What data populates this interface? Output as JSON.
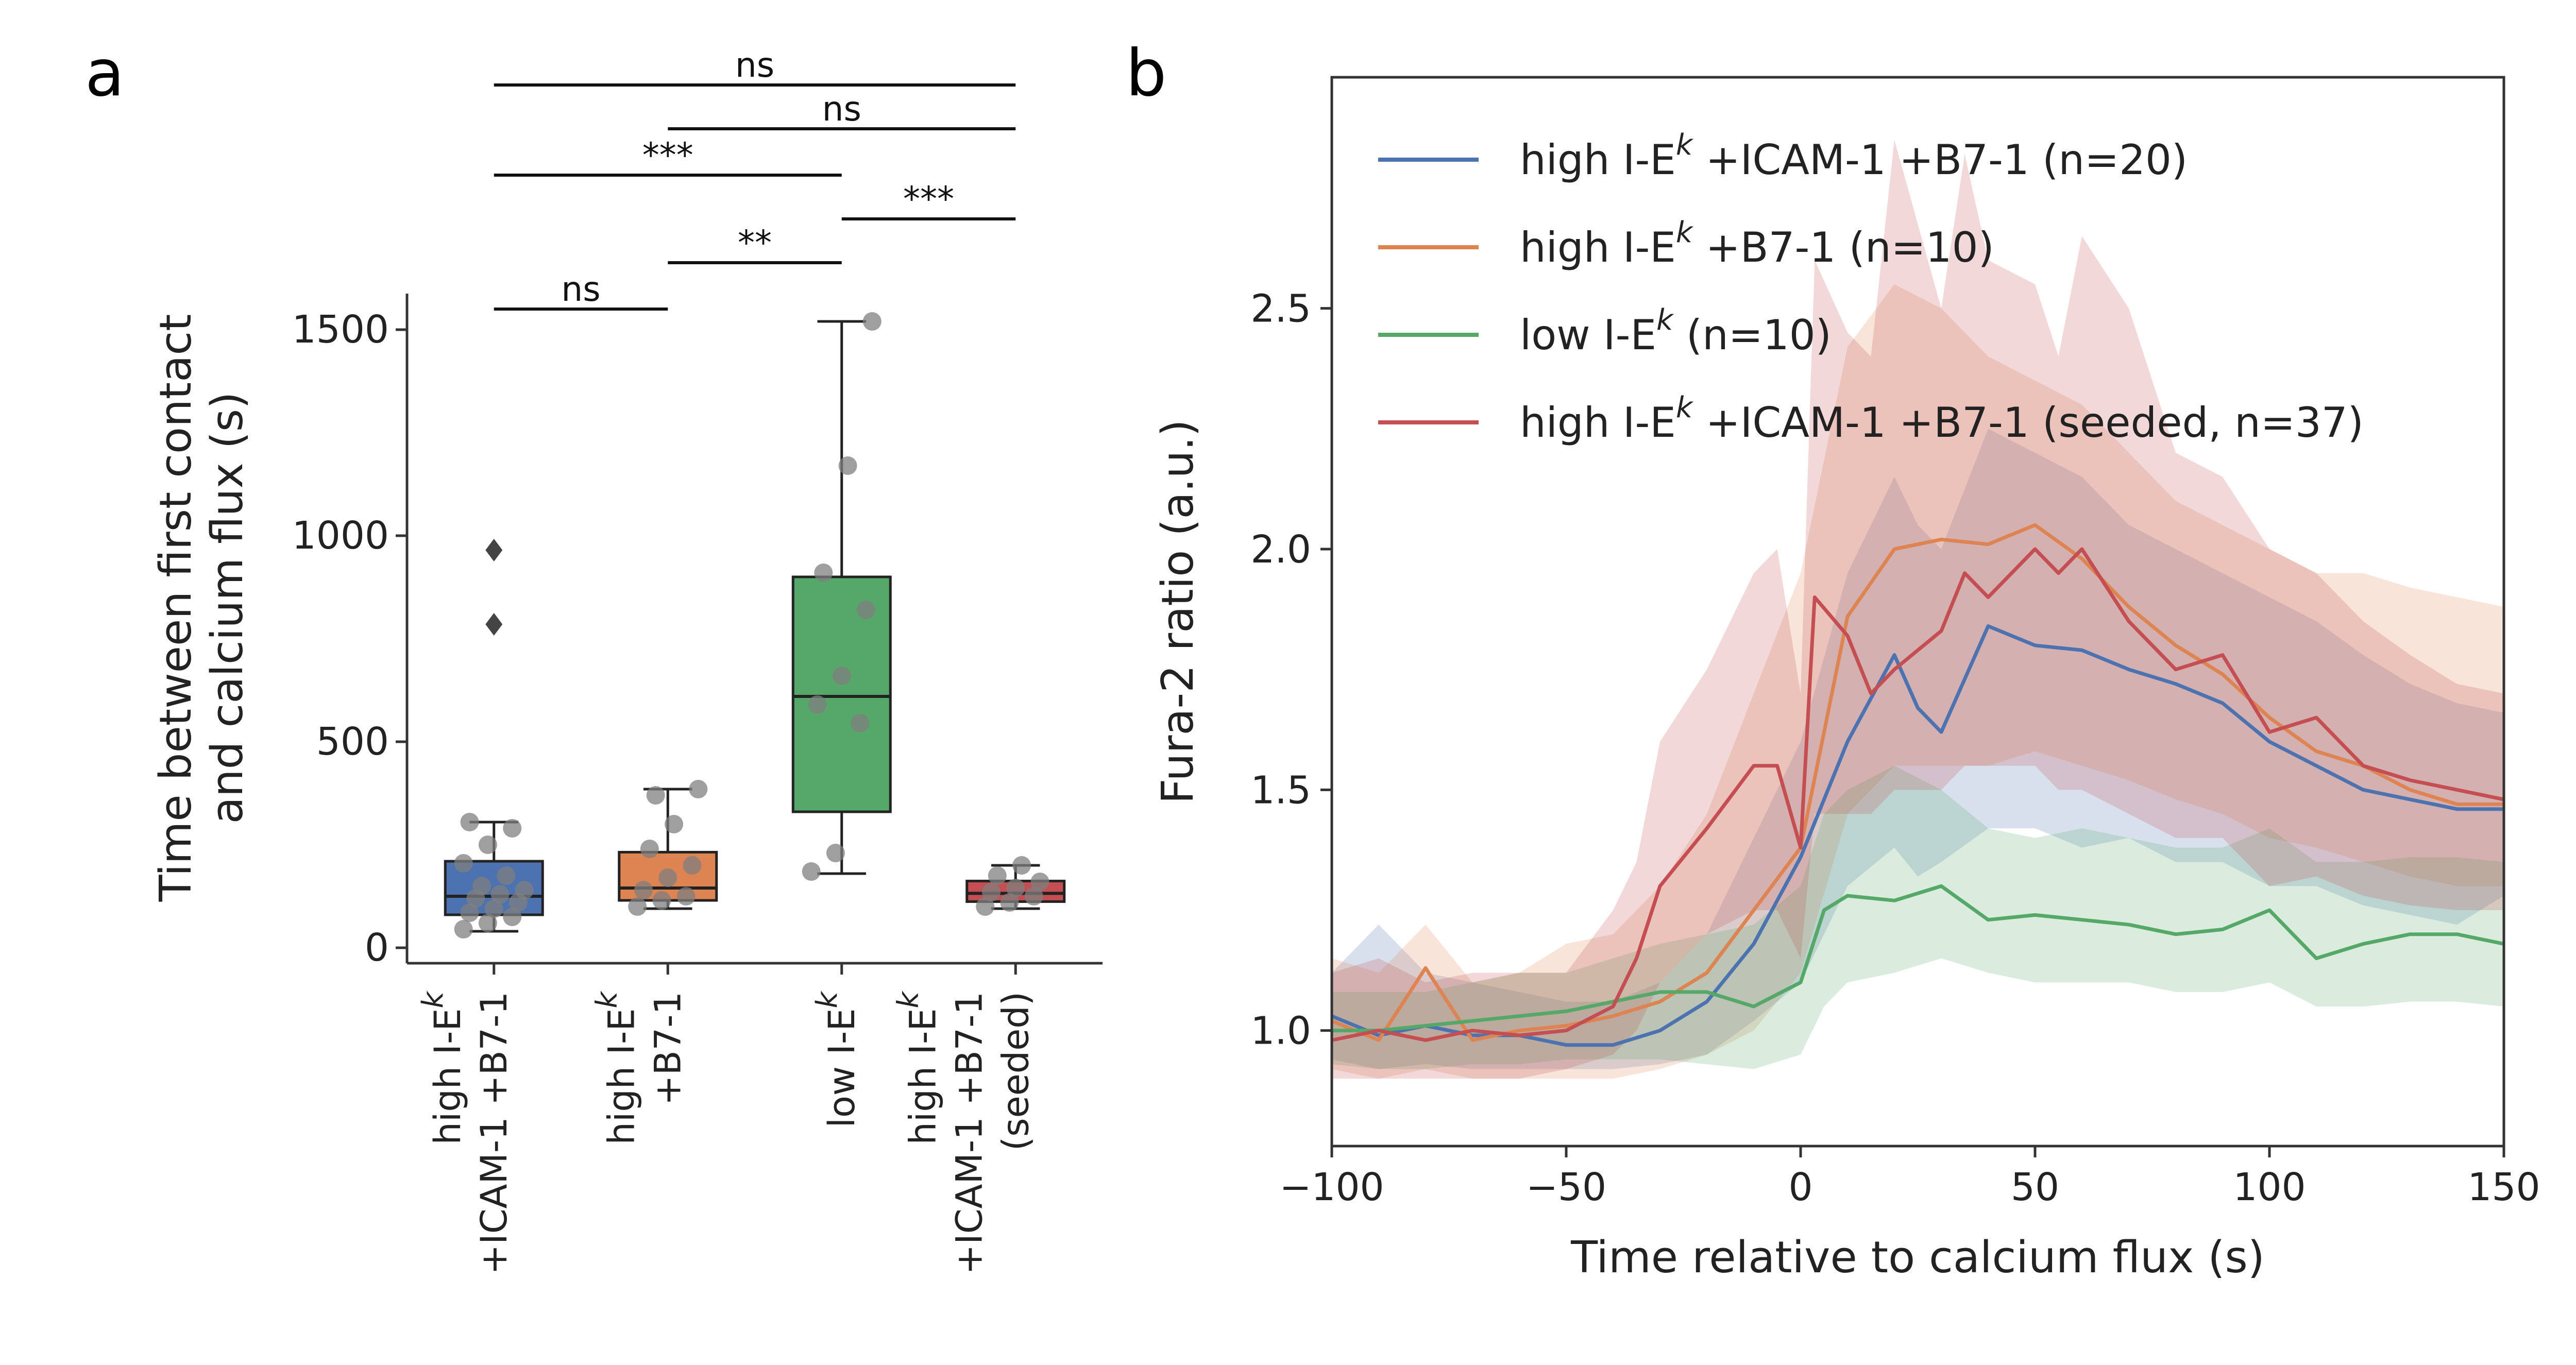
{
  "panel_a_letter": "a",
  "panel_b_letter": "b",
  "chart_data": [
    {
      "type": "box",
      "ylabel_line1": "Time between first contact",
      "ylabel_line2": "and calcium flux (s)",
      "ylim": [
        0,
        1600
      ],
      "yticks": [
        0,
        500,
        1000,
        1500
      ],
      "categories": [
        {
          "lines": [
            [
              "high I-E",
              "k",
              ""
            ],
            [
              "+ICAM-1 +B7-1",
              "",
              ""
            ]
          ],
          "color": "#4c72b0",
          "q1": 80,
          "median": 125,
          "q3": 210,
          "whisker_low": 40,
          "whisker_high": 305,
          "outliers": [
            785,
            965
          ],
          "points": [
            45,
            60,
            75,
            85,
            95,
            110,
            120,
            130,
            140,
            150,
            175,
            205,
            250,
            290,
            305
          ]
        },
        {
          "lines": [
            [
              "high I-E",
              "k",
              ""
            ],
            [
              "+B7-1",
              "",
              ""
            ]
          ],
          "color": "#dd8452",
          "q1": 115,
          "median": 145,
          "q3": 232,
          "whisker_low": 95,
          "whisker_high": 385,
          "outliers": [],
          "points": [
            100,
            115,
            125,
            140,
            170,
            200,
            240,
            300,
            385,
            370
          ]
        },
        {
          "lines": [
            [
              "low I-E",
              "k",
              ""
            ]
          ],
          "color": "#55a868",
          "q1": 330,
          "median": 610,
          "q3": 900,
          "whisker_low": 180,
          "whisker_high": 1520,
          "outliers": [],
          "points": [
            185,
            230,
            545,
            590,
            660,
            820,
            910,
            1170,
            1520
          ]
        },
        {
          "lines": [
            [
              "high I-E",
              "k",
              ""
            ],
            [
              "+ICAM-1 +B7-1",
              "",
              ""
            ],
            [
              "(seeded)",
              "",
              ""
            ]
          ],
          "color": "#c44e52",
          "q1": 112,
          "median": 132,
          "q3": 162,
          "whisker_low": 95,
          "whisker_high": 200,
          "outliers": [],
          "points": [
            100,
            110,
            125,
            135,
            145,
            160,
            175,
            200
          ]
        }
      ],
      "significance": [
        {
          "from": 0,
          "to": 3,
          "label": "ns"
        },
        {
          "from": 1,
          "to": 3,
          "label": "ns"
        },
        {
          "from": 0,
          "to": 2,
          "label": "***"
        },
        {
          "from": 2,
          "to": 3,
          "label": "***"
        },
        {
          "from": 1,
          "to": 2,
          "label": "**"
        },
        {
          "from": 0,
          "to": 1,
          "label": "ns"
        }
      ]
    },
    {
      "type": "line",
      "xlabel": "Time relative to calcium flux (s)",
      "ylabel": "Fura-2 ratio (a.u.)",
      "xlim": [
        -100,
        150
      ],
      "ylim": [
        0.76,
        2.98
      ],
      "xticks": [
        -100,
        -50,
        0,
        50,
        100,
        150
      ],
      "xtick_labels": [
        "−100",
        "−50",
        "0",
        "50",
        "100",
        "150"
      ],
      "yticks": [
        1.0,
        1.5,
        2.0,
        2.5
      ],
      "ytick_labels": [
        "1.0",
        "1.5",
        "2.0",
        "2.5"
      ],
      "legend_position": "top-left",
      "series": [
        {
          "legend": [
            "high I-E",
            "k",
            " +ICAM-1 +B7-1 (n=20)"
          ],
          "color": "#4c72b0",
          "x": [
            -100,
            -90,
            -80,
            -70,
            -60,
            -50,
            -40,
            -30,
            -20,
            -10,
            0,
            10,
            20,
            25,
            30,
            40,
            50,
            60,
            70,
            80,
            90,
            100,
            110,
            120,
            130,
            140,
            150
          ],
          "y": [
            1.03,
            0.99,
            1.01,
            0.99,
            0.99,
            0.97,
            0.97,
            1.0,
            1.06,
            1.18,
            1.36,
            1.6,
            1.78,
            1.67,
            1.62,
            1.84,
            1.8,
            1.79,
            1.75,
            1.72,
            1.68,
            1.6,
            1.55,
            1.5,
            1.48,
            1.46,
            1.46
          ],
          "lower": [
            0.94,
            0.92,
            0.93,
            0.92,
            0.92,
            0.92,
            0.92,
            0.93,
            0.95,
            1.02,
            1.1,
            1.3,
            1.38,
            1.32,
            1.35,
            1.42,
            1.42,
            1.38,
            1.4,
            1.35,
            1.35,
            1.3,
            1.3,
            1.26,
            1.24,
            1.22,
            1.28
          ],
          "upper": [
            1.12,
            1.22,
            1.12,
            1.1,
            1.08,
            1.06,
            1.06,
            1.1,
            1.2,
            1.4,
            1.6,
            1.95,
            2.15,
            2.05,
            2.0,
            2.25,
            2.2,
            2.15,
            2.05,
            2.0,
            1.95,
            1.9,
            1.85,
            1.78,
            1.72,
            1.68,
            1.66
          ]
        },
        {
          "legend": [
            "high I-E",
            "k",
            " +B7-1 (n=10)"
          ],
          "color": "#dd8452",
          "x": [
            -100,
            -90,
            -80,
            -70,
            -60,
            -50,
            -40,
            -30,
            -20,
            -10,
            0,
            10,
            20,
            30,
            40,
            50,
            60,
            70,
            80,
            90,
            100,
            110,
            120,
            130,
            140,
            150
          ],
          "y": [
            1.02,
            0.98,
            1.13,
            0.98,
            1.0,
            1.01,
            1.03,
            1.06,
            1.12,
            1.25,
            1.38,
            1.86,
            2.0,
            2.02,
            2.01,
            2.05,
            1.98,
            1.88,
            1.8,
            1.74,
            1.65,
            1.58,
            1.55,
            1.5,
            1.47,
            1.47
          ],
          "lower": [
            0.92,
            0.9,
            0.92,
            0.9,
            0.9,
            0.9,
            0.9,
            0.92,
            0.95,
            1.0,
            1.12,
            1.45,
            1.55,
            1.55,
            1.55,
            1.58,
            1.55,
            1.52,
            1.48,
            1.45,
            1.4,
            1.38,
            1.35,
            1.32,
            1.3,
            1.3
          ],
          "upper": [
            1.15,
            1.12,
            1.22,
            1.1,
            1.12,
            1.18,
            1.2,
            1.3,
            1.45,
            1.7,
            1.95,
            2.42,
            2.55,
            2.5,
            2.4,
            2.35,
            2.3,
            2.2,
            2.1,
            2.05,
            2.0,
            1.95,
            1.95,
            1.92,
            1.9,
            1.88
          ]
        },
        {
          "legend": [
            "low I-E",
            "k",
            " (n=10)"
          ],
          "color": "#55a868",
          "x": [
            -100,
            -90,
            -80,
            -70,
            -60,
            -50,
            -40,
            -30,
            -20,
            -10,
            0,
            5,
            10,
            20,
            30,
            40,
            50,
            60,
            70,
            80,
            90,
            100,
            110,
            120,
            130,
            140,
            150
          ],
          "y": [
            1.0,
            1.0,
            1.01,
            1.02,
            1.03,
            1.04,
            1.06,
            1.08,
            1.08,
            1.05,
            1.1,
            1.25,
            1.28,
            1.27,
            1.3,
            1.23,
            1.24,
            1.23,
            1.22,
            1.2,
            1.21,
            1.25,
            1.15,
            1.18,
            1.2,
            1.2,
            1.18
          ],
          "lower": [
            0.93,
            0.92,
            0.92,
            0.93,
            0.93,
            0.94,
            0.94,
            0.94,
            0.93,
            0.92,
            0.95,
            1.05,
            1.1,
            1.12,
            1.15,
            1.12,
            1.1,
            1.1,
            1.1,
            1.08,
            1.08,
            1.1,
            1.05,
            1.05,
            1.06,
            1.06,
            1.05
          ],
          "upper": [
            1.08,
            1.08,
            1.08,
            1.1,
            1.12,
            1.12,
            1.15,
            1.18,
            1.2,
            1.22,
            1.3,
            1.45,
            1.5,
            1.55,
            1.5,
            1.42,
            1.4,
            1.42,
            1.4,
            1.38,
            1.38,
            1.42,
            1.35,
            1.35,
            1.36,
            1.36,
            1.35
          ]
        },
        {
          "legend": [
            "high I-E",
            "k",
            " +ICAM-1 +B7-1 (seeded, n=37)"
          ],
          "color": "#c44e52",
          "x": [
            -100,
            -90,
            -80,
            -70,
            -60,
            -50,
            -40,
            -35,
            -30,
            -20,
            -10,
            -5,
            0,
            3,
            10,
            15,
            20,
            30,
            35,
            40,
            50,
            55,
            60,
            70,
            80,
            90,
            100,
            110,
            120,
            130,
            140,
            150
          ],
          "y": [
            0.98,
            1.0,
            0.98,
            1.0,
            0.99,
            1.0,
            1.05,
            1.15,
            1.3,
            1.42,
            1.55,
            1.55,
            1.38,
            1.9,
            1.82,
            1.7,
            1.75,
            1.83,
            1.95,
            1.9,
            2.0,
            1.95,
            2.0,
            1.85,
            1.75,
            1.78,
            1.62,
            1.65,
            1.55,
            1.52,
            1.5,
            1.48
          ],
          "lower": [
            0.9,
            0.9,
            0.9,
            0.9,
            0.9,
            0.92,
            0.95,
            1.0,
            1.1,
            1.2,
            1.25,
            1.25,
            1.15,
            1.45,
            1.45,
            1.45,
            1.5,
            1.5,
            1.55,
            1.55,
            1.55,
            1.5,
            1.5,
            1.45,
            1.4,
            1.4,
            1.3,
            1.32,
            1.28,
            1.26,
            1.25,
            1.25
          ],
          "upper": [
            1.12,
            1.15,
            1.1,
            1.12,
            1.12,
            1.12,
            1.25,
            1.35,
            1.6,
            1.75,
            1.95,
            2.0,
            1.7,
            2.6,
            2.45,
            2.4,
            2.85,
            2.5,
            2.82,
            2.6,
            2.55,
            2.4,
            2.65,
            2.5,
            2.2,
            2.15,
            2.0,
            1.95,
            1.85,
            1.78,
            1.72,
            1.7
          ]
        }
      ]
    }
  ]
}
